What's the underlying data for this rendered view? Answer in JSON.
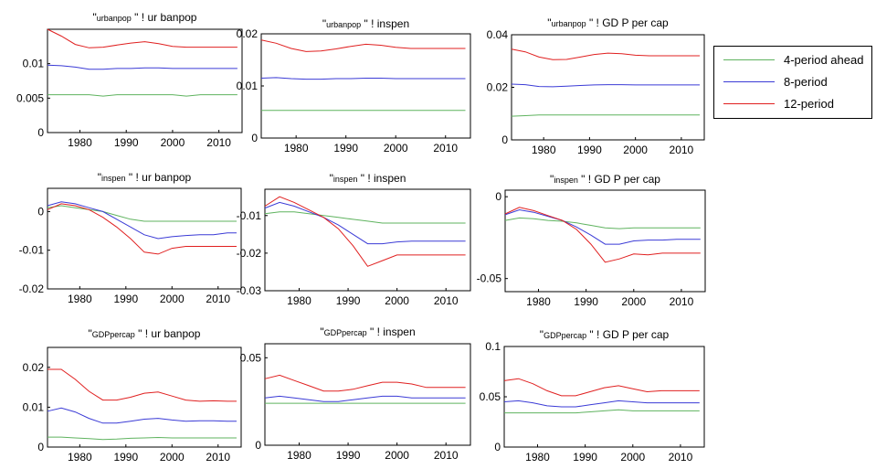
{
  "colors": {
    "h4": "#5fb35f",
    "h8": "#3b3bd6",
    "h12": "#e02020"
  },
  "legend": [
    {
      "label": "4-period ahead",
      "color": "#5fb35f"
    },
    {
      "label": "8-period",
      "color": "#3b3bd6"
    },
    {
      "label": "12-period",
      "color": "#e02020"
    }
  ],
  "chart_data": [
    {
      "type": "line",
      "title": {
        "quote_open": "\"",
        "shock": "urbanpop",
        "arrow": "\" !",
        "target": "ur banpop"
      },
      "xlim": [
        1973,
        2015
      ],
      "ylim": [
        0,
        0.015
      ],
      "xticks": [
        1980,
        1990,
        2000,
        2010
      ],
      "yticks": [
        0,
        0.005,
        0.01
      ],
      "ytick_labels": [
        "0",
        "0.005",
        "0.01"
      ],
      "x": [
        1973,
        1976,
        1979,
        1982,
        1985,
        1988,
        1991,
        1994,
        1997,
        2000,
        2003,
        2006,
        2009,
        2012,
        2014
      ],
      "series": [
        {
          "values": [
            0.0055,
            0.0055,
            0.0055,
            0.0055,
            0.0053,
            0.0055,
            0.0055,
            0.0055,
            0.0055,
            0.0055,
            0.0053,
            0.0055,
            0.0055,
            0.0055,
            0.0055
          ]
        },
        {
          "values": [
            0.0098,
            0.0097,
            0.0095,
            0.0092,
            0.0092,
            0.0093,
            0.0093,
            0.0094,
            0.0094,
            0.0093,
            0.0093,
            0.0093,
            0.0093,
            0.0093,
            0.0093
          ]
        },
        {
          "values": [
            0.015,
            0.014,
            0.0128,
            0.0123,
            0.0124,
            0.0127,
            0.013,
            0.0132,
            0.0129,
            0.0125,
            0.0124,
            0.0124,
            0.0124,
            0.0124,
            0.0124
          ]
        }
      ]
    },
    {
      "type": "line",
      "title": {
        "quote_open": "\"",
        "shock": "urbanpop",
        "arrow": "\" !",
        "target": "inspen"
      },
      "xlim": [
        1973,
        2015
      ],
      "ylim": [
        0,
        0.02
      ],
      "xticks": [
        1980,
        1990,
        2000,
        2010
      ],
      "yticks": [
        0,
        0.01,
        0.02
      ],
      "ytick_labels": [
        "0",
        "0.01",
        "0.02"
      ],
      "x": [
        1973,
        1976,
        1979,
        1982,
        1985,
        1988,
        1991,
        1994,
        1997,
        2000,
        2003,
        2006,
        2009,
        2012,
        2014
      ],
      "series": [
        {
          "values": [
            0.0053,
            0.0053,
            0.0053,
            0.0053,
            0.0053,
            0.0053,
            0.0053,
            0.0053,
            0.0053,
            0.0053,
            0.0053,
            0.0053,
            0.0053,
            0.0053,
            0.0053
          ]
        },
        {
          "values": [
            0.0115,
            0.0116,
            0.0114,
            0.0113,
            0.0113,
            0.0114,
            0.0114,
            0.0115,
            0.0115,
            0.0114,
            0.0114,
            0.0114,
            0.0114,
            0.0114,
            0.0114
          ]
        },
        {
          "values": [
            0.0188,
            0.0182,
            0.0172,
            0.0166,
            0.0167,
            0.0171,
            0.0176,
            0.018,
            0.0178,
            0.0174,
            0.0172,
            0.0172,
            0.0172,
            0.0172,
            0.0172
          ]
        }
      ]
    },
    {
      "type": "line",
      "title": {
        "quote_open": "\"",
        "shock": "urbanpop",
        "arrow": "\" !",
        "target": "GD P per cap"
      },
      "xlim": [
        1973,
        2015
      ],
      "ylim": [
        0,
        0.04
      ],
      "xticks": [
        1980,
        1990,
        2000,
        2010
      ],
      "yticks": [
        0,
        0.02,
        0.04
      ],
      "ytick_labels": [
        "0",
        "0.02",
        "0.04"
      ],
      "x": [
        1973,
        1976,
        1979,
        1982,
        1985,
        1988,
        1991,
        1994,
        1997,
        2000,
        2003,
        2006,
        2009,
        2012,
        2014
      ],
      "series": [
        {
          "values": [
            0.009,
            0.0092,
            0.0095,
            0.0095,
            0.0095,
            0.0095,
            0.0095,
            0.0095,
            0.0095,
            0.0095,
            0.0095,
            0.0095,
            0.0095,
            0.0095,
            0.0095
          ]
        },
        {
          "values": [
            0.0212,
            0.021,
            0.0203,
            0.0202,
            0.0204,
            0.0207,
            0.0209,
            0.021,
            0.021,
            0.0209,
            0.0209,
            0.0209,
            0.0209,
            0.0209,
            0.0209
          ]
        },
        {
          "values": [
            0.0345,
            0.0335,
            0.0315,
            0.0305,
            0.0306,
            0.0315,
            0.0325,
            0.033,
            0.0328,
            0.0322,
            0.032,
            0.032,
            0.032,
            0.032,
            0.032
          ]
        }
      ]
    },
    {
      "type": "line",
      "title": {
        "quote_open": "\"",
        "shock": "inspen",
        "arrow": "\" !",
        "target": "ur banpop"
      },
      "xlim": [
        1973,
        2015
      ],
      "ylim": [
        -0.02,
        0.006
      ],
      "xticks": [
        1980,
        1990,
        2000,
        2010
      ],
      "yticks": [
        -0.02,
        -0.01,
        0
      ],
      "ytick_labels": [
        "-0.02",
        "-0.01",
        "0"
      ],
      "x": [
        1973,
        1976,
        1979,
        1982,
        1985,
        1988,
        1991,
        1994,
        1997,
        2000,
        2003,
        2006,
        2009,
        2012,
        2014
      ],
      "series": [
        {
          "values": [
            0.001,
            0.0015,
            0.001,
            0.0005,
            0.0,
            -0.001,
            -0.002,
            -0.0025,
            -0.0025,
            -0.0025,
            -0.0025,
            -0.0025,
            -0.0025,
            -0.0025,
            -0.0025
          ]
        },
        {
          "values": [
            0.0015,
            0.0025,
            0.002,
            0.001,
            0.0,
            -0.002,
            -0.004,
            -0.006,
            -0.007,
            -0.0065,
            -0.0062,
            -0.006,
            -0.006,
            -0.0055,
            -0.0055
          ]
        },
        {
          "values": [
            0.0005,
            0.002,
            0.0015,
            0.0005,
            -0.0015,
            -0.004,
            -0.007,
            -0.0105,
            -0.011,
            -0.0095,
            -0.009,
            -0.009,
            -0.009,
            -0.009,
            -0.009
          ]
        }
      ]
    },
    {
      "type": "line",
      "title": {
        "quote_open": "\"",
        "shock": "inspen",
        "arrow": "\" !",
        "target": "inspen"
      },
      "xlim": [
        1973,
        2015
      ],
      "ylim": [
        -0.03,
        -0.003
      ],
      "xticks": [
        1980,
        1990,
        2000,
        2010
      ],
      "yticks": [
        -0.03,
        -0.02,
        -0.01
      ],
      "ytick_labels": [
        "-0.03",
        "-0.02",
        "-0.01"
      ],
      "x": [
        1973,
        1976,
        1979,
        1982,
        1985,
        1988,
        1991,
        1994,
        1997,
        2000,
        2003,
        2006,
        2009,
        2012,
        2014
      ],
      "series": [
        {
          "values": [
            -0.0095,
            -0.009,
            -0.009,
            -0.0095,
            -0.01,
            -0.0105,
            -0.011,
            -0.0115,
            -0.012,
            -0.012,
            -0.012,
            -0.012,
            -0.012,
            -0.012,
            -0.012
          ]
        },
        {
          "values": [
            -0.008,
            -0.0065,
            -0.0075,
            -0.009,
            -0.0105,
            -0.0125,
            -0.015,
            -0.0175,
            -0.0175,
            -0.017,
            -0.0168,
            -0.0168,
            -0.0168,
            -0.0168,
            -0.0168
          ]
        },
        {
          "values": [
            -0.0075,
            -0.005,
            -0.0065,
            -0.0085,
            -0.0105,
            -0.0135,
            -0.018,
            -0.0235,
            -0.022,
            -0.0205,
            -0.0205,
            -0.0205,
            -0.0205,
            -0.0205,
            -0.0205
          ]
        }
      ]
    },
    {
      "type": "line",
      "title": {
        "quote_open": "\"",
        "shock": "inspen",
        "arrow": "\" !",
        "target": "GD P per cap"
      },
      "xlim": [
        1973,
        2015
      ],
      "ylim": [
        -0.058,
        0.004
      ],
      "xticks": [
        1980,
        1990,
        2000,
        2010
      ],
      "yticks": [
        -0.05,
        0
      ],
      "ytick_labels": [
        "-0.05",
        "0"
      ],
      "x": [
        1973,
        1976,
        1979,
        1982,
        1985,
        1988,
        1991,
        1994,
        1997,
        2000,
        2003,
        2006,
        2009,
        2012,
        2014
      ],
      "series": [
        {
          "values": [
            -0.0145,
            -0.013,
            -0.0135,
            -0.0145,
            -0.015,
            -0.016,
            -0.0175,
            -0.019,
            -0.0195,
            -0.019,
            -0.019,
            -0.019,
            -0.019,
            -0.019,
            -0.019
          ]
        },
        {
          "values": [
            -0.011,
            -0.008,
            -0.0095,
            -0.012,
            -0.0145,
            -0.0185,
            -0.0235,
            -0.029,
            -0.029,
            -0.027,
            -0.0265,
            -0.0265,
            -0.026,
            -0.026,
            -0.026
          ]
        },
        {
          "values": [
            -0.0105,
            -0.0065,
            -0.0085,
            -0.0115,
            -0.0145,
            -0.02,
            -0.029,
            -0.04,
            -0.038,
            -0.035,
            -0.0355,
            -0.0345,
            -0.0345,
            -0.0345,
            -0.0345
          ]
        }
      ]
    },
    {
      "type": "line",
      "title": {
        "quote_open": "\"",
        "shock": "GDPpercap",
        "arrow": "\" !",
        "target": "ur banpop"
      },
      "xlim": [
        1973,
        2015
      ],
      "ylim": [
        0,
        0.025
      ],
      "xticks": [
        1980,
        1990,
        2000,
        2010
      ],
      "yticks": [
        0,
        0.01,
        0.02
      ],
      "ytick_labels": [
        "0",
        "0.01",
        "0.02"
      ],
      "x": [
        1973,
        1976,
        1979,
        1982,
        1985,
        1988,
        1991,
        1994,
        1997,
        2000,
        2003,
        2006,
        2009,
        2012,
        2014
      ],
      "series": [
        {
          "values": [
            0.0025,
            0.0025,
            0.0023,
            0.0021,
            0.0019,
            0.002,
            0.0022,
            0.0023,
            0.0024,
            0.0023,
            0.0023,
            0.0023,
            0.0023,
            0.0023,
            0.0023
          ]
        },
        {
          "values": [
            0.009,
            0.0098,
            0.0088,
            0.0072,
            0.006,
            0.006,
            0.0065,
            0.007,
            0.0072,
            0.0068,
            0.0065,
            0.0066,
            0.0066,
            0.0065,
            0.0065
          ]
        },
        {
          "values": [
            0.0195,
            0.0195,
            0.017,
            0.014,
            0.0118,
            0.0118,
            0.0125,
            0.0135,
            0.0138,
            0.0128,
            0.0118,
            0.0115,
            0.0116,
            0.0115,
            0.0115
          ]
        }
      ]
    },
    {
      "type": "line",
      "title": {
        "quote_open": "\"",
        "shock": "GDPpercap",
        "arrow": "\" !",
        "target": "inspen"
      },
      "xlim": [
        1973,
        2015
      ],
      "ylim": [
        0,
        0.058
      ],
      "xticks": [
        1980,
        1990,
        2000,
        2010
      ],
      "yticks": [
        0,
        0.05
      ],
      "ytick_labels": [
        "0",
        "0.05"
      ],
      "x": [
        1973,
        1976,
        1979,
        1982,
        1985,
        1988,
        1991,
        1994,
        1997,
        2000,
        2003,
        2006,
        2009,
        2012,
        2014
      ],
      "series": [
        {
          "values": [
            0.024,
            0.024,
            0.024,
            0.024,
            0.024,
            0.024,
            0.024,
            0.024,
            0.024,
            0.024,
            0.024,
            0.024,
            0.024,
            0.024,
            0.024
          ]
        },
        {
          "values": [
            0.027,
            0.028,
            0.027,
            0.026,
            0.025,
            0.025,
            0.026,
            0.027,
            0.028,
            0.028,
            0.027,
            0.027,
            0.027,
            0.027,
            0.027
          ]
        },
        {
          "values": [
            0.038,
            0.04,
            0.037,
            0.034,
            0.031,
            0.031,
            0.032,
            0.034,
            0.036,
            0.036,
            0.035,
            0.033,
            0.033,
            0.033,
            0.033
          ]
        }
      ]
    },
    {
      "type": "line",
      "title": {
        "quote_open": "\"",
        "shock": "GDPpercap",
        "arrow": "\" !",
        "target": "GD P per cap"
      },
      "xlim": [
        1973,
        2015
      ],
      "ylim": [
        0,
        0.1
      ],
      "xticks": [
        1980,
        1990,
        2000,
        2010
      ],
      "yticks": [
        0,
        0.05,
        0.1
      ],
      "ytick_labels": [
        "0",
        "0.05",
        "0.1"
      ],
      "x": [
        1973,
        1976,
        1979,
        1982,
        1985,
        1988,
        1991,
        1994,
        1997,
        2000,
        2003,
        2006,
        2009,
        2012,
        2014
      ],
      "series": [
        {
          "values": [
            0.034,
            0.034,
            0.034,
            0.034,
            0.034,
            0.034,
            0.035,
            0.036,
            0.037,
            0.036,
            0.036,
            0.036,
            0.036,
            0.036,
            0.036
          ]
        },
        {
          "values": [
            0.045,
            0.046,
            0.044,
            0.041,
            0.04,
            0.04,
            0.042,
            0.044,
            0.046,
            0.045,
            0.044,
            0.044,
            0.044,
            0.044,
            0.044
          ]
        },
        {
          "values": [
            0.066,
            0.068,
            0.063,
            0.056,
            0.051,
            0.051,
            0.055,
            0.059,
            0.061,
            0.058,
            0.055,
            0.056,
            0.056,
            0.056,
            0.056
          ]
        }
      ]
    }
  ]
}
